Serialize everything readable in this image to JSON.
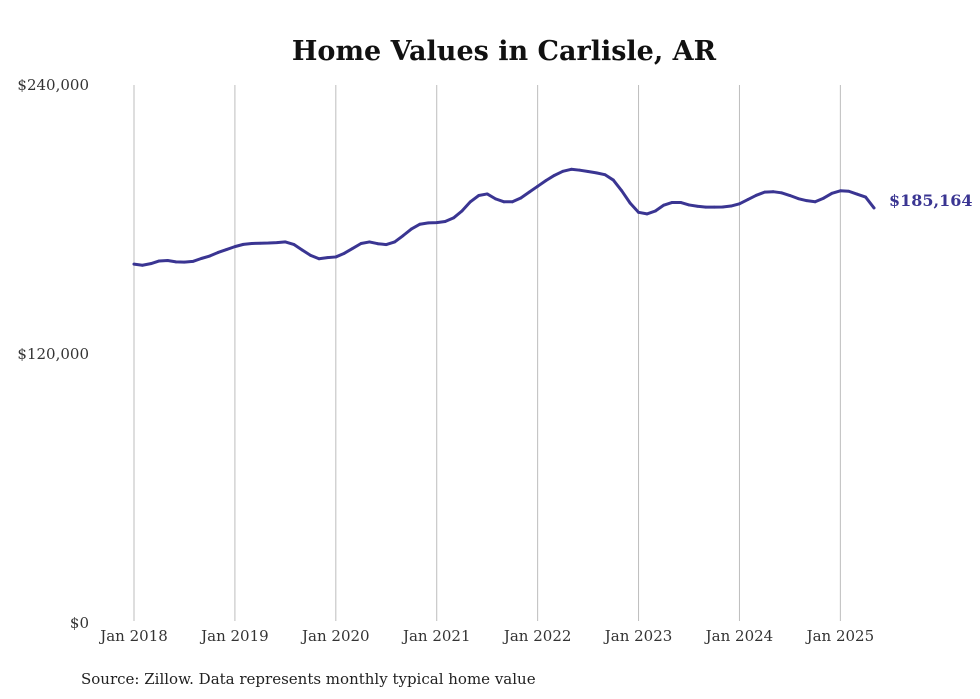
{
  "chart_data": {
    "type": "line",
    "title": "Home Values in Carlisle, AR",
    "xlabel": "",
    "ylabel": "",
    "source_note": "Source: Zillow. Data represents monthly typical home value",
    "colors": {
      "line": "#3a3592",
      "grid": "#bdbdbd",
      "text": "#333333"
    },
    "ylim": [
      0,
      240000
    ],
    "y_ticks": [
      {
        "value": 0,
        "label": "$0"
      },
      {
        "value": 120000,
        "label": "$120,000"
      },
      {
        "value": 240000,
        "label": "$240,000"
      }
    ],
    "x_range": [
      "2018-01",
      "2025-05"
    ],
    "x_ticks": [
      {
        "date": "2018-01",
        "label": "Jan 2018"
      },
      {
        "date": "2019-01",
        "label": "Jan 2019"
      },
      {
        "date": "2020-01",
        "label": "Jan 2020"
      },
      {
        "date": "2021-01",
        "label": "Jan 2021"
      },
      {
        "date": "2022-01",
        "label": "Jan 2022"
      },
      {
        "date": "2023-01",
        "label": "Jan 2023"
      },
      {
        "date": "2024-01",
        "label": "Jan 2024"
      },
      {
        "date": "2025-01",
        "label": "Jan 2025"
      }
    ],
    "grid": {
      "vertical": true,
      "horizontal": false
    },
    "legend": "none",
    "end_label": "$185,164",
    "series": [
      {
        "x": [
          "2018-01",
          "2018-02",
          "2018-03",
          "2018-04",
          "2018-05",
          "2018-06",
          "2018-07",
          "2018-08",
          "2018-09",
          "2018-10",
          "2018-11",
          "2018-12",
          "2019-01",
          "2019-02",
          "2019-03",
          "2019-04",
          "2019-05",
          "2019-06",
          "2019-07",
          "2019-08",
          "2019-09",
          "2019-10",
          "2019-11",
          "2019-12",
          "2020-01",
          "2020-02",
          "2020-03",
          "2020-04",
          "2020-05",
          "2020-06",
          "2020-07",
          "2020-08",
          "2020-09",
          "2020-10",
          "2020-11",
          "2020-12",
          "2021-01",
          "2021-02",
          "2021-03",
          "2021-04",
          "2021-05",
          "2021-06",
          "2021-07",
          "2021-08",
          "2021-09",
          "2021-10",
          "2021-11",
          "2021-12",
          "2022-01",
          "2022-02",
          "2022-03",
          "2022-04",
          "2022-05",
          "2022-06",
          "2022-07",
          "2022-08",
          "2022-09",
          "2022-10",
          "2022-11",
          "2022-12",
          "2023-01",
          "2023-02",
          "2023-03",
          "2023-04",
          "2023-05",
          "2023-06",
          "2023-07",
          "2023-08",
          "2023-09",
          "2023-10",
          "2023-11",
          "2023-12",
          "2024-01",
          "2024-02",
          "2024-03",
          "2024-04",
          "2024-05",
          "2024-06",
          "2024-07",
          "2024-08",
          "2024-09",
          "2024-10",
          "2024-11",
          "2024-12",
          "2025-01",
          "2025-02",
          "2025-03",
          "2025-04",
          "2025-05"
        ],
        "values": [
          160100,
          159600,
          160300,
          161500,
          161700,
          161100,
          161000,
          161300,
          162600,
          163700,
          165300,
          166600,
          167900,
          168900,
          169300,
          169400,
          169500,
          169700,
          170000,
          168900,
          166400,
          164000,
          162500,
          163000,
          163300,
          164900,
          167100,
          169300,
          170000,
          169200,
          168800,
          170000,
          172800,
          175800,
          177900,
          178500,
          178600,
          179100,
          180700,
          183800,
          187900,
          190700,
          191400,
          189200,
          187900,
          187900,
          189600,
          192200,
          194800,
          197400,
          199700,
          201500,
          202400,
          202000,
          201400,
          200800,
          200000,
          197600,
          192800,
          187300,
          183200,
          182500,
          183800,
          186400,
          187600,
          187600,
          186500,
          185900,
          185500,
          185500,
          185600,
          186000,
          187000,
          188900,
          190800,
          192200,
          192400,
          191900,
          190700,
          189300,
          188400,
          187900,
          189500,
          191700,
          192800,
          192600,
          191300,
          190000,
          185164
        ]
      }
    ]
  }
}
